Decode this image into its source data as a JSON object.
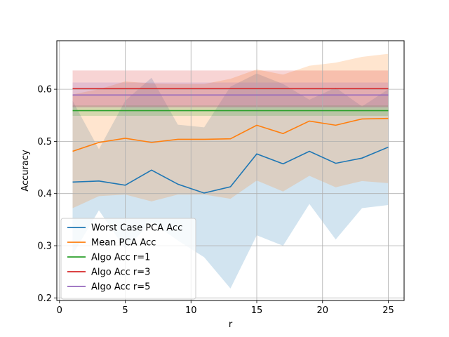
{
  "chart_data": {
    "type": "line",
    "title": "",
    "xlabel": "r",
    "ylabel": "Accuracy",
    "xlim": [
      -0.2,
      26.2
    ],
    "ylim": [
      0.195,
      0.693
    ],
    "xticks": [
      0,
      5,
      10,
      15,
      20,
      25
    ],
    "yticks": [
      0.2,
      0.3,
      0.4,
      0.5,
      0.6
    ],
    "ytick_labels": [
      "0.2",
      "0.3",
      "0.4",
      "0.5",
      "0.6"
    ],
    "grid": true,
    "legend_position": "lower-left",
    "x": [
      1,
      3,
      5,
      7,
      9,
      11,
      13,
      15,
      17,
      19,
      21,
      23,
      25
    ],
    "series": [
      {
        "name": "Worst Case PCA Acc",
        "color": "#1f77b4",
        "values": [
          0.422,
          0.424,
          0.416,
          0.445,
          0.418,
          0.401,
          0.413,
          0.476,
          0.457,
          0.481,
          0.458,
          0.468,
          0.489
        ],
        "band_low": [
          0.283,
          0.368,
          0.294,
          0.345,
          0.31,
          0.278,
          0.218,
          0.32,
          0.3,
          0.38,
          0.312,
          0.372,
          0.378
        ],
        "band_high": [
          0.578,
          0.485,
          0.578,
          0.622,
          0.532,
          0.527,
          0.605,
          0.63,
          0.61,
          0.58,
          0.603,
          0.567,
          0.6
        ]
      },
      {
        "name": "Mean PCA Acc",
        "color": "#ff7f0e",
        "values": [
          0.481,
          0.498,
          0.506,
          0.498,
          0.504,
          0.504,
          0.505,
          0.531,
          0.515,
          0.539,
          0.531,
          0.543,
          0.544
        ],
        "band_low": [
          0.372,
          0.395,
          0.398,
          0.385,
          0.398,
          0.398,
          0.39,
          0.425,
          0.404,
          0.434,
          0.412,
          0.424,
          0.42
        ],
        "band_high": [
          0.59,
          0.6,
          0.615,
          0.611,
          0.61,
          0.61,
          0.62,
          0.638,
          0.628,
          0.645,
          0.651,
          0.662,
          0.668
        ]
      },
      {
        "name": "Algo Acc r=1",
        "color": "#2ca02c",
        "constant": 0.559,
        "band_low": 0.549,
        "band_high": 0.569
      },
      {
        "name": "Algo Acc r=3",
        "color": "#d62728",
        "constant": 0.601,
        "band_low": 0.566,
        "band_high": 0.636
      },
      {
        "name": "Algo Acc r=5",
        "color": "#9467bd",
        "constant": 0.589,
        "band_low": 0.565,
        "band_high": 0.613
      }
    ]
  }
}
